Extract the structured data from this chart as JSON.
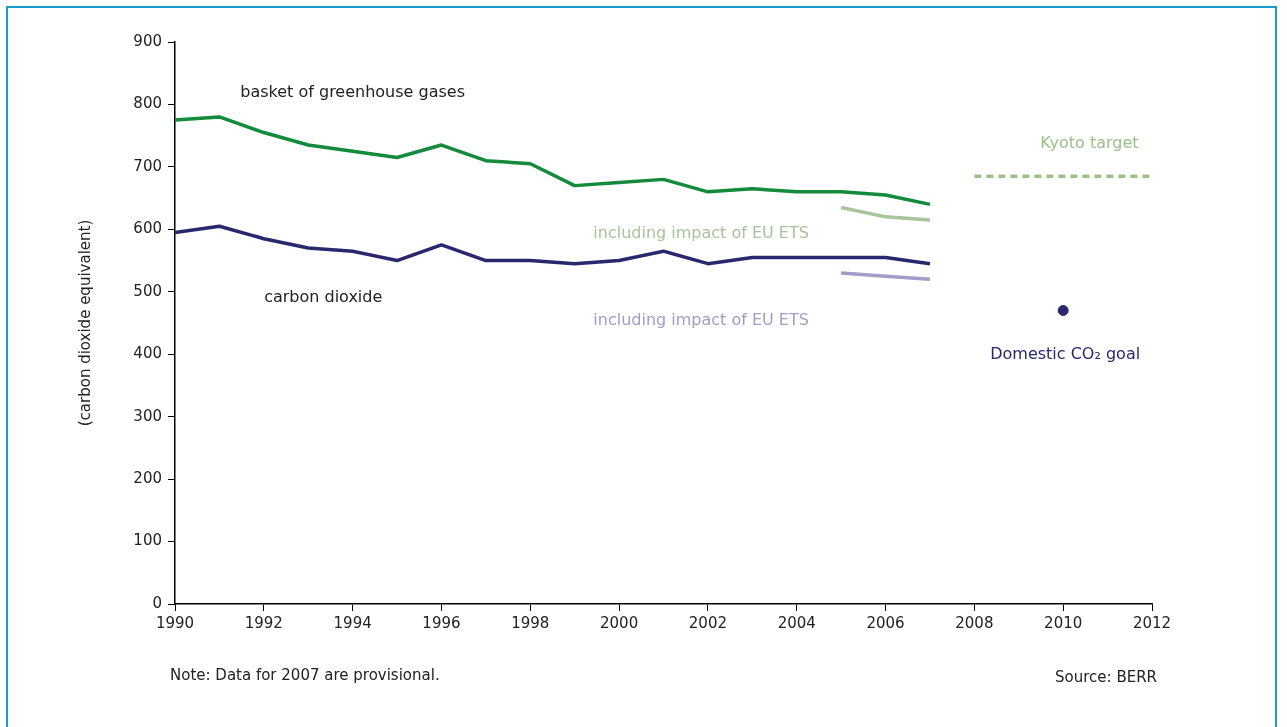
{
  "chart_data": {
    "type": "line",
    "ylabel": "(carbon dioxide equivalent)",
    "xlim": [
      1990,
      2012
    ],
    "xticks": [
      1990,
      1992,
      1994,
      1996,
      1998,
      2000,
      2002,
      2004,
      2006,
      2008,
      2010,
      2012
    ],
    "ylim": [
      0,
      900
    ],
    "yticks": [
      0,
      100,
      200,
      300,
      400,
      500,
      600,
      700,
      800,
      900
    ],
    "grid": false,
    "legend": false,
    "marker": "none",
    "series": [
      {
        "name": "basket of greenhouse gases",
        "color": "#138a3c",
        "x": [
          1990,
          1991,
          1992,
          1993,
          1994,
          1995,
          1996,
          1997,
          1998,
          1999,
          2000,
          2001,
          2002,
          2003,
          2004,
          2005,
          2006,
          2007
        ],
        "values": [
          775,
          780,
          755,
          735,
          725,
          715,
          735,
          710,
          705,
          670,
          675,
          680,
          660,
          665,
          660,
          660,
          655,
          640
        ]
      },
      {
        "name": "carbon dioxide",
        "color": "#28286e",
        "x": [
          1990,
          1991,
          1992,
          1993,
          1994,
          1995,
          1996,
          1997,
          1998,
          1999,
          2000,
          2001,
          2002,
          2003,
          2004,
          2005,
          2006,
          2007
        ],
        "values": [
          595,
          605,
          585,
          570,
          565,
          550,
          575,
          550,
          550,
          545,
          550,
          565,
          545,
          555,
          555,
          555,
          555,
          545
        ]
      },
      {
        "name": "including impact of EU ETS",
        "color": "#a8c49a",
        "x": [
          2005,
          2006,
          2007
        ],
        "values": [
          635,
          620,
          615
        ]
      },
      {
        "name": "including impact of EU ETS",
        "color": "#a29cc8",
        "x": [
          2005,
          2006,
          2007
        ],
        "values": [
          530,
          525,
          520
        ]
      },
      {
        "name": "Kyoto target",
        "color": "#9cc08a",
        "line_style": "dashed",
        "x": [
          2008,
          2012
        ],
        "values": [
          685,
          685
        ]
      },
      {
        "name": "Domestic CO₂ goal",
        "type": "scatter",
        "marker": "circle",
        "color": "#28286e",
        "x": [
          2010
        ],
        "values": [
          470
        ]
      }
    ],
    "annotations": [
      "Note: Data for 2007 are provisional.",
      "Source: BERR"
    ]
  }
}
